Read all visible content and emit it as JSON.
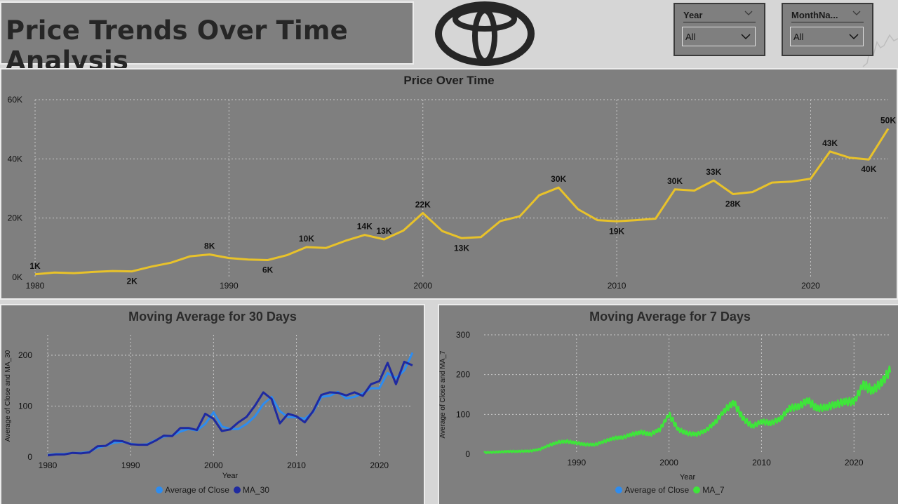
{
  "header": {
    "title": "Price Trends Over Time Analysis"
  },
  "logo": {
    "icon": "toyota-logo"
  },
  "slicers": [
    {
      "label": "Year",
      "value": "All"
    },
    {
      "label": "MonthNa...",
      "value": "All"
    }
  ],
  "chart_data": [
    {
      "type": "line",
      "title": "Price Over Time",
      "xlabel": "",
      "ylabel": "",
      "grid": true,
      "xlim": [
        1980,
        2024
      ],
      "ylim": [
        0,
        60000
      ],
      "x_ticks": [
        1980,
        1990,
        2000,
        2010,
        2020
      ],
      "y_ticks": [
        0,
        20000,
        40000,
        60000
      ],
      "y_tick_labels": [
        "0K",
        "20K",
        "40K",
        "60K"
      ],
      "series": [
        {
          "color": "#e8c22a",
          "x": [
            1980,
            1981,
            1982,
            1983,
            1984,
            1985,
            1986,
            1987,
            1988,
            1989,
            1990,
            1991,
            1992,
            1993,
            1994,
            1995,
            1996,
            1997,
            1998,
            1999,
            2000,
            2001,
            2002,
            2003,
            2004,
            2005,
            2006,
            2007,
            2008,
            2009,
            2010,
            2011,
            2012,
            2013,
            2014,
            2015,
            2016,
            2017,
            2018,
            2019,
            2020,
            2021,
            2022,
            2023,
            2024
          ],
          "values": [
            1000,
            1600,
            1400,
            1800,
            2100,
            2000,
            3600,
            4900,
            7100,
            7700,
            6500,
            6000,
            5800,
            7500,
            10200,
            9900,
            12300,
            14300,
            12800,
            15800,
            21700,
            15600,
            13200,
            13600,
            19000,
            20600,
            27700,
            30300,
            23000,
            19300,
            18900,
            19300,
            19800,
            29700,
            29300,
            32700,
            28100,
            28800,
            32000,
            32300,
            33300,
            42500,
            40400,
            39800,
            50200
          ]
        }
      ],
      "data_labels": [
        {
          "x": 1980,
          "y": 1000,
          "text": "1K"
        },
        {
          "x": 1985,
          "y": 2000,
          "text": "2K"
        },
        {
          "x": 1989,
          "y": 7700,
          "text": "8K"
        },
        {
          "x": 1992,
          "y": 5800,
          "text": "6K"
        },
        {
          "x": 1994,
          "y": 10200,
          "text": "10K"
        },
        {
          "x": 1997,
          "y": 14300,
          "text": "14K"
        },
        {
          "x": 1998,
          "y": 12800,
          "text": "13K"
        },
        {
          "x": 2000,
          "y": 21700,
          "text": "22K"
        },
        {
          "x": 2002,
          "y": 13200,
          "text": "13K"
        },
        {
          "x": 2007,
          "y": 30300,
          "text": "30K"
        },
        {
          "x": 2010,
          "y": 18900,
          "text": "19K"
        },
        {
          "x": 2013,
          "y": 29700,
          "text": "30K"
        },
        {
          "x": 2015,
          "y": 32700,
          "text": "33K"
        },
        {
          "x": 2016,
          "y": 28100,
          "text": "28K"
        },
        {
          "x": 2021,
          "y": 42500,
          "text": "43K"
        },
        {
          "x": 2023,
          "y": 39800,
          "text": "40K"
        },
        {
          "x": 2024,
          "y": 50200,
          "text": "50K"
        }
      ]
    },
    {
      "type": "line",
      "title": "Moving Average for 30 Days",
      "xlabel": "Year",
      "ylabel": "Average of Close and MA_30",
      "grid": true,
      "xlim": [
        1980,
        2024
      ],
      "ylim": [
        0,
        240
      ],
      "x_ticks": [
        1980,
        1990,
        2000,
        2010,
        2020
      ],
      "y_ticks": [
        0,
        100,
        200
      ],
      "legend_position": "bottom",
      "series": [
        {
          "name": "Average of Close",
          "color": "#2d8cf0",
          "x": [
            1980,
            1981,
            1982,
            1983,
            1984,
            1985,
            1986,
            1987,
            1988,
            1989,
            1990,
            1991,
            1992,
            1993,
            1994,
            1995,
            1996,
            1997,
            1998,
            1999,
            2000,
            2001,
            2002,
            2003,
            2004,
            2005,
            2006,
            2007,
            2008,
            2009,
            2010,
            2011,
            2012,
            2013,
            2014,
            2015,
            2016,
            2017,
            2018,
            2019,
            2020,
            2021,
            2022,
            2023,
            2024
          ],
          "values": [
            4,
            6,
            6,
            8,
            8,
            10,
            18,
            22,
            28,
            30,
            26,
            24,
            25,
            33,
            40,
            42,
            50,
            55,
            52,
            65,
            88,
            60,
            55,
            55,
            65,
            80,
            104,
            118,
            90,
            78,
            78,
            75,
            88,
            118,
            120,
            128,
            115,
            118,
            125,
            135,
            135,
            165,
            155,
            170,
            205
          ]
        },
        {
          "name": "MA_30",
          "color": "#1f2aa0",
          "x": [
            1980,
            1981,
            1982,
            1983,
            1984,
            1985,
            1986,
            1987,
            1988,
            1989,
            1990,
            1991,
            1992,
            1993,
            1994,
            1995,
            1996,
            1997,
            1998,
            1999,
            2000,
            2001,
            2002,
            2003,
            2004,
            2005,
            2006,
            2007,
            2008,
            2009,
            2010,
            2011,
            2012,
            2013,
            2014,
            2015,
            2016,
            2017,
            2018,
            2019,
            2020,
            2021,
            2022,
            2023,
            2024
          ],
          "values": [
            3,
            5,
            5,
            8,
            7,
            9,
            21,
            22,
            32,
            31,
            25,
            24,
            24,
            32,
            42,
            41,
            57,
            57,
            53,
            85,
            75,
            51,
            54,
            68,
            79,
            101,
            127,
            114,
            66,
            85,
            80,
            68,
            90,
            122,
            127,
            126,
            121,
            127,
            120,
            143,
            149,
            185,
            143,
            187,
            180
          ]
        }
      ]
    },
    {
      "type": "line",
      "title": "Moving Average for 7 Days",
      "xlabel": "Year",
      "ylabel": "Average of Close and MA_7",
      "grid": true,
      "xlim": [
        1980,
        2024
      ],
      "ylim": [
        0,
        300
      ],
      "x_ticks": [
        1990,
        2000,
        2010,
        2020
      ],
      "y_ticks": [
        0,
        100,
        200,
        300
      ],
      "legend_position": "bottom",
      "series": [
        {
          "name": "Average of Close",
          "color": "#2d8cf0",
          "x": [],
          "values": []
        },
        {
          "name": "MA_7",
          "color": "#3ee63a",
          "x": [
            1980,
            1981,
            1982,
            1983,
            1984,
            1985,
            1986,
            1987,
            1988,
            1989,
            1990,
            1991,
            1992,
            1993,
            1994,
            1995,
            1996,
            1997,
            1998,
            1999,
            2000,
            2001,
            2002,
            2003,
            2004,
            2005,
            2006,
            2007,
            2008,
            2009,
            2010,
            2011,
            2012,
            2013,
            2014,
            2015,
            2016,
            2017,
            2018,
            2019,
            2020,
            2021,
            2022,
            2023,
            2024
          ],
          "values": [
            4,
            5,
            6,
            7,
            7,
            8,
            12,
            22,
            30,
            32,
            28,
            24,
            24,
            32,
            40,
            42,
            50,
            55,
            50,
            62,
            100,
            62,
            52,
            50,
            60,
            80,
            110,
            130,
            90,
            70,
            82,
            78,
            88,
            115,
            120,
            135,
            115,
            118,
            125,
            132,
            132,
            175,
            160,
            180,
            215
          ]
        }
      ]
    }
  ]
}
